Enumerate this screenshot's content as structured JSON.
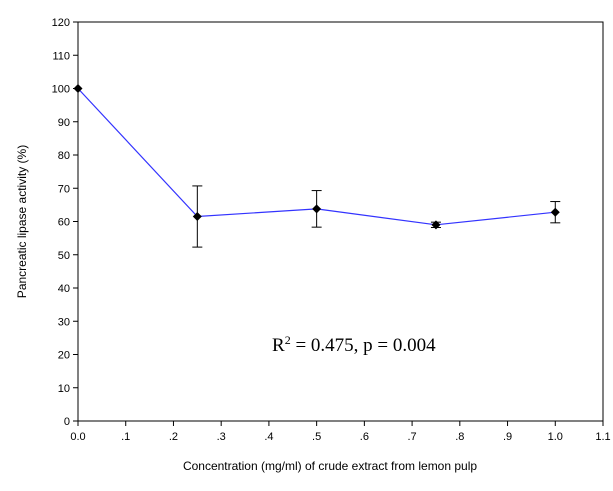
{
  "chart_data": {
    "type": "line",
    "title": "",
    "xlabel": "Concentration (mg/ml) of crude extract from lemon pulp",
    "ylabel": "Pancreatic lipase activity (%)",
    "xlim": [
      0.0,
      1.1
    ],
    "ylim": [
      0,
      120
    ],
    "x_tick_labels": [
      "0.0",
      ".1",
      ".2",
      ".3",
      ".4",
      ".5",
      ".6",
      ".7",
      ".8",
      ".9",
      "1.0",
      "1.1"
    ],
    "y_tick_labels": [
      "0",
      "10",
      "20",
      "30",
      "40",
      "50",
      "60",
      "70",
      "80",
      "90",
      "100",
      "110",
      "120"
    ],
    "grid": false,
    "legend": "none",
    "series": [
      {
        "x": [
          0.0,
          0.25,
          0.5,
          0.75,
          1.0
        ],
        "y": [
          100,
          61.5,
          63.8,
          59.0,
          62.8
        ],
        "error": [
          0,
          9.2,
          5.5,
          0.8,
          3.2
        ]
      }
    ],
    "annotation_parts": {
      "r": "R",
      "sup": "2",
      "rest": " = 0.475, p = 0.004"
    },
    "line_color": "#3333ff",
    "marker_color": "#000000"
  }
}
